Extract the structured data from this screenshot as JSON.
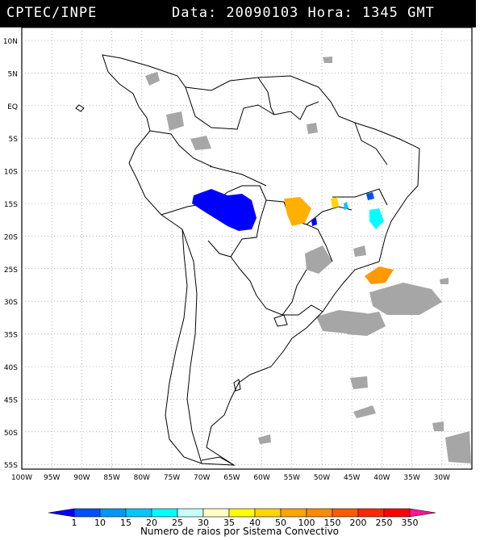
{
  "header": {
    "source": "CPTEC/INPE",
    "datetime": "Data: 20090103 Hora: 1345 GMT"
  },
  "axes": {
    "lat_ticks": [
      "10N",
      "5N",
      "EQ",
      "5S",
      "10S",
      "15S",
      "20S",
      "25S",
      "30S",
      "35S",
      "40S",
      "45S",
      "50S",
      "55S"
    ],
    "lon_ticks": [
      "100W",
      "95W",
      "90W",
      "85W",
      "80W",
      "75W",
      "70W",
      "65W",
      "60W",
      "55W",
      "50W",
      "45W",
      "40W",
      "35W",
      "30W"
    ]
  },
  "legend": {
    "levels": [
      "1",
      "10",
      "15",
      "20",
      "25",
      "30",
      "35",
      "40",
      "50",
      "100",
      "150",
      "200",
      "250",
      "350"
    ],
    "colors": [
      "#0000ff",
      "#0050ff",
      "#0096ff",
      "#00c8ff",
      "#00ffff",
      "#c8ffff",
      "#ffffc8",
      "#ffff00",
      "#ffd700",
      "#ffa500",
      "#ff8c00",
      "#ff5a00",
      "#ff2800",
      "#ff0000",
      "#ff1493"
    ],
    "caption": "Numero de raios por Sistema Convectivo"
  },
  "colors": {
    "cloud": "#a6a6a6",
    "border": "#000000",
    "grid": "#888888"
  }
}
